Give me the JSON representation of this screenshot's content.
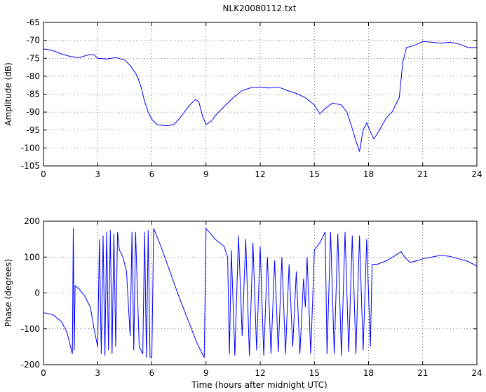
{
  "title": "NLK20080112.txt",
  "xlabel": "Time (hours after midnight UTC)",
  "colors": {
    "series": "#0000ff",
    "axes": "#000000"
  },
  "chart_data": [
    {
      "type": "line",
      "title": "NLK20080112.txt",
      "xlabel": "",
      "ylabel": "Amplitude (dB)",
      "xlim": [
        0,
        24
      ],
      "ylim": [
        -105,
        -65
      ],
      "xticks": [
        0,
        3,
        6,
        9,
        12,
        15,
        18,
        21,
        24
      ],
      "yticks": [
        -105,
        -100,
        -95,
        -90,
        -85,
        -80,
        -75,
        -70,
        -65
      ],
      "grid": true,
      "series": [
        {
          "points": [
            [
              0,
              -72.4
            ],
            [
              0.5,
              -72.8
            ],
            [
              1,
              -73.8
            ],
            [
              1.5,
              -74.5
            ],
            [
              2,
              -74.8
            ],
            [
              2.5,
              -74.0
            ],
            [
              2.8,
              -74.0
            ],
            [
              3,
              -75.0
            ],
            [
              3.5,
              -75.2
            ],
            [
              4,
              -74.8
            ],
            [
              4.5,
              -75.5
            ],
            [
              4.8,
              -77.0
            ],
            [
              5.0,
              -78.5
            ],
            [
              5.2,
              -80.0
            ],
            [
              5.4,
              -83.0
            ],
            [
              5.6,
              -87.0
            ],
            [
              5.8,
              -90.0
            ],
            [
              6.0,
              -92.0
            ],
            [
              6.3,
              -93.5
            ],
            [
              6.8,
              -93.8
            ],
            [
              7.2,
              -93.5
            ],
            [
              7.5,
              -92.0
            ],
            [
              7.8,
              -90.0
            ],
            [
              8.1,
              -88.0
            ],
            [
              8.4,
              -86.5
            ],
            [
              8.6,
              -87.0
            ],
            [
              8.8,
              -91.0
            ],
            [
              9.0,
              -93.5
            ],
            [
              9.3,
              -92.5
            ],
            [
              9.6,
              -90.5
            ],
            [
              10.0,
              -88.5
            ],
            [
              10.5,
              -86.0
            ],
            [
              11.0,
              -84.0
            ],
            [
              11.5,
              -83.2
            ],
            [
              12.0,
              -83.0
            ],
            [
              12.5,
              -83.3
            ],
            [
              13.0,
              -83.0
            ],
            [
              13.5,
              -84.0
            ],
            [
              14.0,
              -84.8
            ],
            [
              14.5,
              -86.0
            ],
            [
              15.0,
              -88.0
            ],
            [
              15.3,
              -90.5
            ],
            [
              15.6,
              -89.0
            ],
            [
              16.0,
              -87.5
            ],
            [
              16.5,
              -88.0
            ],
            [
              16.8,
              -90.0
            ],
            [
              17.0,
              -93.0
            ],
            [
              17.3,
              -98.0
            ],
            [
              17.5,
              -101.0
            ],
            [
              17.7,
              -95.0
            ],
            [
              17.9,
              -93.0
            ],
            [
              18.1,
              -95.5
            ],
            [
              18.3,
              -97.5
            ],
            [
              18.6,
              -95.0
            ],
            [
              19.0,
              -91.5
            ],
            [
              19.3,
              -90.0
            ],
            [
              19.5,
              -88.0
            ],
            [
              19.7,
              -86.0
            ],
            [
              19.9,
              -76.0
            ],
            [
              20.1,
              -72.0
            ],
            [
              20.5,
              -71.5
            ],
            [
              21.0,
              -70.3
            ],
            [
              21.5,
              -70.5
            ],
            [
              22.0,
              -70.8
            ],
            [
              22.5,
              -70.5
            ],
            [
              23.0,
              -71.0
            ],
            [
              23.5,
              -72.0
            ],
            [
              24.0,
              -72.0
            ]
          ]
        }
      ]
    },
    {
      "type": "line",
      "title": "",
      "xlabel": "Time (hours after midnight UTC)",
      "ylabel": "Phase (degrees)",
      "xlim": [
        0,
        24
      ],
      "ylim": [
        -200,
        200
      ],
      "xticks": [
        0,
        3,
        6,
        9,
        12,
        15,
        18,
        21,
        24
      ],
      "yticks": [
        -200,
        -100,
        0,
        100,
        200
      ],
      "grid": true,
      "series": [
        {
          "points": [
            [
              0,
              -55
            ],
            [
              0.5,
              -60
            ],
            [
              1.0,
              -80
            ],
            [
              1.3,
              -110
            ],
            [
              1.6,
              -170
            ],
            [
              1.65,
              180
            ],
            [
              1.7,
              -160
            ],
            [
              1.75,
              20
            ],
            [
              2.0,
              10
            ],
            [
              2.3,
              -10
            ],
            [
              2.6,
              -40
            ],
            [
              2.8,
              -100
            ],
            [
              3.0,
              -150
            ],
            [
              3.1,
              150
            ],
            [
              3.2,
              -170
            ],
            [
              3.3,
              160
            ],
            [
              3.4,
              -175
            ],
            [
              3.5,
              170
            ],
            [
              3.6,
              -160
            ],
            [
              3.7,
              175
            ],
            [
              3.8,
              -170
            ],
            [
              3.9,
              165
            ],
            [
              4.0,
              -150
            ],
            [
              4.1,
              170
            ],
            [
              4.2,
              120
            ],
            [
              4.4,
              100
            ],
            [
              4.6,
              60
            ],
            [
              4.8,
              -120
            ],
            [
              4.9,
              170
            ],
            [
              5.0,
              -160
            ],
            [
              5.1,
              170
            ],
            [
              5.3,
              -150
            ],
            [
              5.5,
              -170
            ],
            [
              5.6,
              170
            ],
            [
              5.7,
              -180
            ],
            [
              5.8,
              175
            ],
            [
              5.9,
              -178
            ],
            [
              6.0,
              -180
            ],
            [
              6.1,
              180
            ],
            [
              6.5,
              130
            ],
            [
              7.0,
              60
            ],
            [
              7.5,
              -10
            ],
            [
              8.0,
              -75
            ],
            [
              8.5,
              -140
            ],
            [
              8.9,
              -180
            ],
            [
              9.0,
              180
            ],
            [
              9.5,
              150
            ],
            [
              10.0,
              130
            ],
            [
              10.2,
              100
            ],
            [
              10.3,
              -170
            ],
            [
              10.4,
              120
            ],
            [
              10.6,
              -175
            ],
            [
              10.8,
              160
            ],
            [
              11.0,
              -120
            ],
            [
              11.2,
              150
            ],
            [
              11.4,
              -175
            ],
            [
              11.6,
              140
            ],
            [
              11.8,
              -160
            ],
            [
              12.0,
              130
            ],
            [
              12.2,
              -175
            ],
            [
              12.4,
              100
            ],
            [
              12.6,
              -170
            ],
            [
              12.8,
              90
            ],
            [
              13.0,
              -165
            ],
            [
              13.2,
              100
            ],
            [
              13.4,
              -170
            ],
            [
              13.6,
              80
            ],
            [
              13.8,
              -150
            ],
            [
              14.0,
              60
            ],
            [
              14.2,
              -170
            ],
            [
              14.4,
              40
            ],
            [
              14.5,
              -40
            ],
            [
              14.6,
              100
            ],
            [
              14.8,
              -170
            ],
            [
              15.0,
              120
            ],
            [
              15.3,
              140
            ],
            [
              15.6,
              170
            ],
            [
              15.7,
              -170
            ],
            [
              15.9,
              170
            ],
            [
              16.1,
              -170
            ],
            [
              16.3,
              165
            ],
            [
              16.5,
              -175
            ],
            [
              16.7,
              170
            ],
            [
              16.9,
              -165
            ],
            [
              17.1,
              160
            ],
            [
              17.3,
              -170
            ],
            [
              17.5,
              160
            ],
            [
              17.7,
              -160
            ],
            [
              17.9,
              150
            ],
            [
              18.1,
              -150
            ],
            [
              18.2,
              80
            ],
            [
              18.5,
              80
            ],
            [
              19.0,
              90
            ],
            [
              19.5,
              105
            ],
            [
              19.8,
              115
            ],
            [
              20.0,
              100
            ],
            [
              20.3,
              85
            ],
            [
              20.7,
              90
            ],
            [
              21.0,
              95
            ],
            [
              21.5,
              100
            ],
            [
              22.0,
              105
            ],
            [
              22.5,
              102
            ],
            [
              23.0,
              95
            ],
            [
              23.5,
              88
            ],
            [
              24.0,
              75
            ]
          ]
        }
      ]
    }
  ]
}
